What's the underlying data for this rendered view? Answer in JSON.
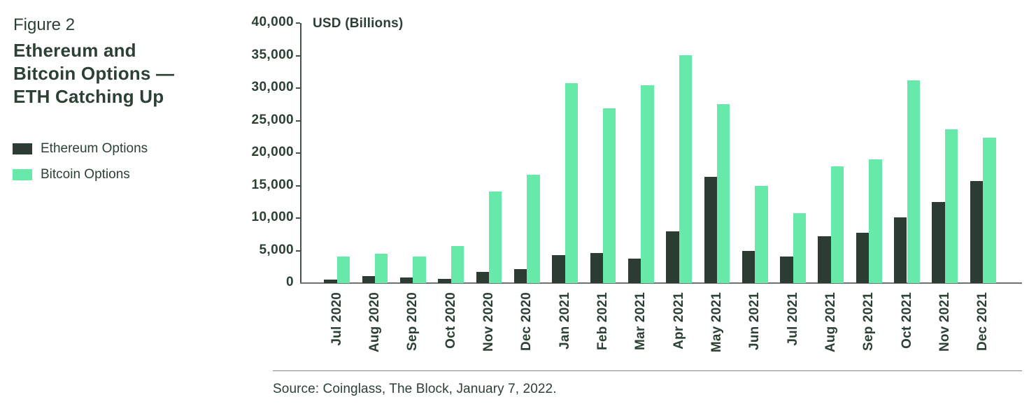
{
  "figure": {
    "label": "Figure 2",
    "title": "Ethereum and Bitcoin Options — ETH Catching Up",
    "title_lines": [
      "Ethereum and",
      "Bitcoin Options —",
      "ETH Catching Up"
    ]
  },
  "legend": [
    {
      "label": "Ethereum Options",
      "color": "#2d3c32"
    },
    {
      "label": "Bitcoin Options",
      "color": "#67e9a9"
    }
  ],
  "source": "Source: Coinglass, The Block, January 7, 2022.",
  "colors": {
    "text": "#2c4133",
    "ethereum": "#2d3c32",
    "bitcoin": "#67e9a9",
    "y_axis": "#45514a",
    "x_axis": "#6e736f",
    "divider": "#82877f"
  },
  "chart_data": {
    "type": "bar",
    "title": "Ethereum and Bitcoin Options — ETH Catching Up",
    "ylabel": "USD (Billions)",
    "xlabel": "",
    "ylim": [
      0,
      40000
    ],
    "ytick_step": 5000,
    "ytick_labels": [
      "40,000",
      "35,000",
      "30,000",
      "25,000",
      "20,000",
      "15,000",
      "10,000",
      "5,000",
      "0"
    ],
    "grid": false,
    "legend_position": "left",
    "categories": [
      "Jul 2020",
      "Aug 2020",
      "Sep 2020",
      "Oct 2020",
      "Nov 2020",
      "Dec 2020",
      "Jan 2021",
      "Feb 2021",
      "Mar 2021",
      "Apr 2021",
      "May 2021",
      "Jun 2021",
      "Jul 2021",
      "Aug 2021",
      "Sep 2021",
      "Oct 2021",
      "Nov 2021",
      "Dec 2021"
    ],
    "series": [
      {
        "name": "Ethereum Options",
        "color": "#2d3c32",
        "values": [
          500,
          1100,
          900,
          600,
          1700,
          2100,
          4300,
          4600,
          3800,
          8000,
          16300,
          4900,
          4100,
          7200,
          7700,
          10100,
          12500,
          15700
        ]
      },
      {
        "name": "Bitcoin Options",
        "color": "#67e9a9",
        "values": [
          4100,
          4500,
          4100,
          5700,
          14100,
          16700,
          30800,
          26900,
          30400,
          35100,
          27500,
          14900,
          10800,
          18000,
          19000,
          31200,
          23700,
          22400
        ]
      }
    ]
  }
}
